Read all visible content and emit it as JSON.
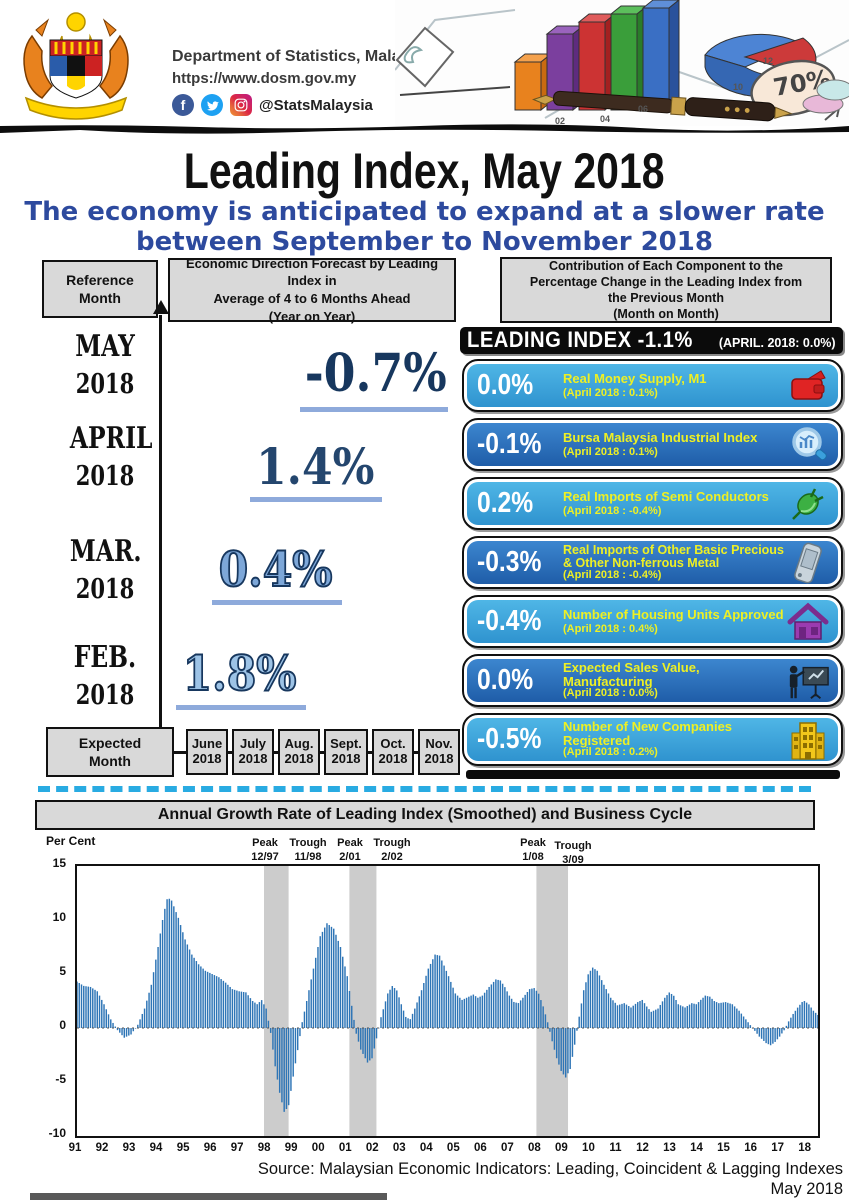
{
  "header": {
    "department": "Department of Statistics, Malaysia",
    "website": "https://www.dosm.gov.my",
    "social_handle": "@StatsMalaysia",
    "decor_badge": "70%"
  },
  "title": "Leading Index, May 2018",
  "subtitle_line1": "The economy is anticipated to expand at a slower rate",
  "subtitle_line2": "between September to November 2018",
  "forecast": {
    "reference_month_label": "Reference\nMonth",
    "direction_header": "Economic Direction Forecast by Leading Index in\nAverage of 4 to 6 Months Ahead\n(Year on Year)",
    "rows": [
      {
        "month": "MAY",
        "year": "2018",
        "value": "-0.7%"
      },
      {
        "month": "APRIL",
        "year": "2018",
        "value": "1.4%"
      },
      {
        "month": "MAR.",
        "year": "2018",
        "value": "0.4%"
      },
      {
        "month": "FEB.",
        "year": "2018",
        "value": "1.8%"
      }
    ],
    "expected_month_label": "Expected\nMonth",
    "expected_months": [
      {
        "month": "June",
        "year": "2018"
      },
      {
        "month": "July",
        "year": "2018"
      },
      {
        "month": "Aug.",
        "year": "2018"
      },
      {
        "month": "Sept.",
        "year": "2018"
      },
      {
        "month": "Oct.",
        "year": "2018"
      },
      {
        "month": "Nov.",
        "year": "2018"
      }
    ]
  },
  "contribution": {
    "header": "Contribution of Each Component to the\nPercentage Change in the Leading Index from\nthe Previous Month\n(Month on Month)",
    "banner_main": "LEADING INDEX  -1.1%",
    "banner_note": "(APRIL. 2018: 0.0%)",
    "components": [
      {
        "value": "0.0%",
        "name": "Real Money Supply, M1",
        "note": "(April 2018 : 0.1%)",
        "icon": "wallet-icon"
      },
      {
        "value": "-0.1%",
        "name": "Bursa Malaysia Industrial Index",
        "note": "(April 2018 : 0.1%)",
        "icon": "magnifier-chart-icon"
      },
      {
        "value": "0.2%",
        "name": "Real Imports of Semi Conductors",
        "note": "(April 2018 : -0.4%)",
        "icon": "plug-icon"
      },
      {
        "value": "-0.3%",
        "name": "Real Imports of Other Basic Precious & Other Non-ferrous Metal",
        "note": "(April 2018 : -0.4%)",
        "icon": "phone-icon"
      },
      {
        "value": "-0.4%",
        "name": "Number of Housing Units Approved",
        "note": "(April 2018 : 0.4%)",
        "icon": "house-icon"
      },
      {
        "value": "0.0%",
        "name": "Expected Sales Value, Manufacturing",
        "note": "(April 2018 : 0.0%)",
        "icon": "presenter-icon"
      },
      {
        "value": "-0.5%",
        "name": "Number of New Companies Registered",
        "note": "(April 2018 : 0.2%)",
        "icon": "building-icon"
      }
    ]
  },
  "chart_data": {
    "type": "bar",
    "title": "Annual Growth Rate of Leading Index (Smoothed) and Business Cycle",
    "ylabel": "Per Cent",
    "ylim": [
      -10,
      15
    ],
    "yticks": [
      15,
      10,
      5,
      0,
      -5,
      -10
    ],
    "x_tick_labels": [
      "91",
      "92",
      "93",
      "94",
      "95",
      "96",
      "97",
      "98",
      "99",
      "00",
      "01",
      "02",
      "03",
      "04",
      "05",
      "06",
      "07",
      "08",
      "09",
      "10",
      "11",
      "12",
      "13",
      "14",
      "15",
      "16",
      "17",
      "18"
    ],
    "x_range": [
      1991.0,
      2018.42
    ],
    "grid": "zero-line-dotted",
    "legend": "none",
    "bar_color": "#2e75b6",
    "band_color": "#cccccc",
    "recession_bands": [
      {
        "peak_label": "Peak",
        "peak_date": "12/97",
        "trough_label": "Trough",
        "trough_date": "11/98",
        "start": 1997.92,
        "end": 1998.83
      },
      {
        "peak_label": "Peak",
        "peak_date": "2/01",
        "trough_label": "Trough",
        "trough_date": "2/02",
        "start": 2001.08,
        "end": 2002.08
      },
      {
        "peak_label": "Peak",
        "peak_date": "1/08",
        "trough_label": "Trough",
        "trough_date": "3/09",
        "start": 2008.0,
        "end": 2009.17
      }
    ],
    "series_keypoints": [
      [
        1991.0,
        4.3
      ],
      [
        1991.25,
        3.9
      ],
      [
        1991.5,
        3.8
      ],
      [
        1991.75,
        3.4
      ],
      [
        1992.0,
        2.2
      ],
      [
        1992.25,
        0.8
      ],
      [
        1992.5,
        -0.2
      ],
      [
        1992.75,
        -0.9
      ],
      [
        1993.0,
        -0.6
      ],
      [
        1993.25,
        0.3
      ],
      [
        1993.5,
        1.8
      ],
      [
        1993.75,
        4.0
      ],
      [
        1994.0,
        7.5
      ],
      [
        1994.2,
        10.5
      ],
      [
        1994.35,
        12.1
      ],
      [
        1994.5,
        11.8
      ],
      [
        1994.75,
        10.2
      ],
      [
        1995.0,
        8.2
      ],
      [
        1995.25,
        6.8
      ],
      [
        1995.5,
        5.9
      ],
      [
        1995.75,
        5.3
      ],
      [
        1996.0,
        5.0
      ],
      [
        1996.25,
        4.7
      ],
      [
        1996.5,
        4.2
      ],
      [
        1996.75,
        3.6
      ],
      [
        1997.0,
        3.4
      ],
      [
        1997.25,
        3.3
      ],
      [
        1997.5,
        2.5
      ],
      [
        1997.67,
        2.2
      ],
      [
        1997.83,
        2.6
      ],
      [
        1998.0,
        1.8
      ],
      [
        1998.17,
        -0.5
      ],
      [
        1998.33,
        -3.5
      ],
      [
        1998.5,
        -6.0
      ],
      [
        1998.67,
        -7.8
      ],
      [
        1998.83,
        -7.2
      ],
      [
        1999.0,
        -4.5
      ],
      [
        1999.17,
        -2.0
      ],
      [
        1999.33,
        0.5
      ],
      [
        1999.5,
        2.5
      ],
      [
        1999.75,
        5.5
      ],
      [
        2000.0,
        8.5
      ],
      [
        2000.25,
        9.7
      ],
      [
        2000.5,
        9.2
      ],
      [
        2000.75,
        7.5
      ],
      [
        2001.0,
        4.8
      ],
      [
        2001.17,
        2.0
      ],
      [
        2001.33,
        -0.5
      ],
      [
        2001.5,
        -2.0
      ],
      [
        2001.75,
        -3.2
      ],
      [
        2001.92,
        -2.8
      ],
      [
        2002.08,
        -1.0
      ],
      [
        2002.25,
        1.0
      ],
      [
        2002.5,
        3.2
      ],
      [
        2002.67,
        3.9
      ],
      [
        2002.83,
        3.5
      ],
      [
        2003.0,
        2.2
      ],
      [
        2003.17,
        1.0
      ],
      [
        2003.33,
        0.8
      ],
      [
        2003.5,
        1.8
      ],
      [
        2003.75,
        3.5
      ],
      [
        2004.0,
        5.5
      ],
      [
        2004.25,
        6.8
      ],
      [
        2004.42,
        6.7
      ],
      [
        2004.58,
        5.8
      ],
      [
        2004.75,
        4.8
      ],
      [
        2005.0,
        3.2
      ],
      [
        2005.25,
        2.6
      ],
      [
        2005.5,
        2.9
      ],
      [
        2005.67,
        3.1
      ],
      [
        2005.83,
        2.8
      ],
      [
        2006.0,
        3.0
      ],
      [
        2006.25,
        3.8
      ],
      [
        2006.5,
        4.5
      ],
      [
        2006.67,
        4.4
      ],
      [
        2006.83,
        3.8
      ],
      [
        2007.0,
        3.0
      ],
      [
        2007.17,
        2.4
      ],
      [
        2007.33,
        2.3
      ],
      [
        2007.5,
        2.8
      ],
      [
        2007.75,
        3.6
      ],
      [
        2007.92,
        3.7
      ],
      [
        2008.08,
        3.2
      ],
      [
        2008.25,
        2.0
      ],
      [
        2008.42,
        0.5
      ],
      [
        2008.58,
        -1.2
      ],
      [
        2008.75,
        -2.8
      ],
      [
        2008.92,
        -4.0
      ],
      [
        2009.08,
        -4.6
      ],
      [
        2009.25,
        -3.8
      ],
      [
        2009.42,
        -1.5
      ],
      [
        2009.58,
        1.0
      ],
      [
        2009.75,
        3.5
      ],
      [
        2009.92,
        5.0
      ],
      [
        2010.08,
        5.6
      ],
      [
        2010.25,
        5.3
      ],
      [
        2010.5,
        4.0
      ],
      [
        2010.75,
        2.8
      ],
      [
        2011.0,
        2.1
      ],
      [
        2011.25,
        2.3
      ],
      [
        2011.5,
        1.9
      ],
      [
        2011.75,
        2.4
      ],
      [
        2011.92,
        2.6
      ],
      [
        2012.08,
        2.0
      ],
      [
        2012.25,
        1.5
      ],
      [
        2012.5,
        1.8
      ],
      [
        2012.75,
        2.8
      ],
      [
        2012.92,
        3.3
      ],
      [
        2013.08,
        3.0
      ],
      [
        2013.25,
        2.2
      ],
      [
        2013.5,
        1.9
      ],
      [
        2013.75,
        2.3
      ],
      [
        2013.92,
        2.2
      ],
      [
        2014.08,
        2.6
      ],
      [
        2014.25,
        3.0
      ],
      [
        2014.42,
        2.9
      ],
      [
        2014.58,
        2.5
      ],
      [
        2014.75,
        2.3
      ],
      [
        2015.0,
        2.4
      ],
      [
        2015.25,
        2.2
      ],
      [
        2015.5,
        1.6
      ],
      [
        2015.75,
        0.8
      ],
      [
        2016.0,
        0.0
      ],
      [
        2016.25,
        -0.8
      ],
      [
        2016.5,
        -1.4
      ],
      [
        2016.67,
        -1.6
      ],
      [
        2016.83,
        -1.3
      ],
      [
        2017.0,
        -0.8
      ],
      [
        2017.17,
        -0.2
      ],
      [
        2017.33,
        0.6
      ],
      [
        2017.5,
        1.3
      ],
      [
        2017.67,
        1.9
      ],
      [
        2017.83,
        2.4
      ],
      [
        2017.92,
        2.5
      ],
      [
        2018.08,
        2.2
      ],
      [
        2018.25,
        1.6
      ],
      [
        2018.42,
        1.2
      ]
    ]
  },
  "footer": {
    "source": "Source: Malaysian Economic Indicators: Leading, Coincident & Lagging Indexes",
    "date": "May 2018"
  }
}
